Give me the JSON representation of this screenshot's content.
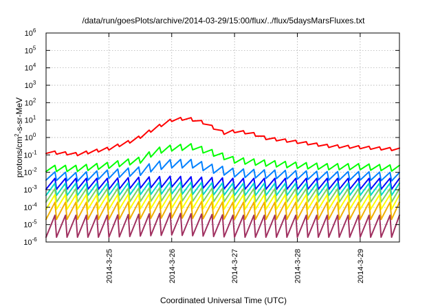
{
  "chart_data": {
    "type": "line",
    "title": "/data/run/goesPlots/archive/2014-03-29/15:00/flux/../flux/5daysMarsFluxes.txt",
    "xlabel": "Coordinated Universal Time (UTC)",
    "ylabel": "protons/cm2-s-sr-MeV",
    "ylabel_main": "protons/cm",
    "ylabel_sup": "2",
    "ylabel_rest": "-s-sr-MeV",
    "yscale": "log",
    "ylim": [
      1e-06,
      1000000.0
    ],
    "xlim": [
      "2014-03-24T00:00",
      "2014-03-29T15:00"
    ],
    "grid": true,
    "y_ticks": [
      {
        "base": "10",
        "exp": "6",
        "value": 1000000.0
      },
      {
        "base": "10",
        "exp": "5",
        "value": 100000.0
      },
      {
        "base": "10",
        "exp": "4",
        "value": 10000.0
      },
      {
        "base": "10",
        "exp": "3",
        "value": 1000.0
      },
      {
        "base": "10",
        "exp": "2",
        "value": 100.0
      },
      {
        "base": "10",
        "exp": "1",
        "value": 10.0
      },
      {
        "base": "10",
        "exp": "0",
        "value": 1.0
      },
      {
        "base": "10",
        "exp": "-1",
        "value": 0.1
      },
      {
        "base": "10",
        "exp": "-2",
        "value": 0.01
      },
      {
        "base": "10",
        "exp": "-3",
        "value": 0.001
      },
      {
        "base": "10",
        "exp": "-4",
        "value": 0.0001
      },
      {
        "base": "10",
        "exp": "-5",
        "value": 1e-05
      },
      {
        "base": "10",
        "exp": "-6",
        "value": 1e-06
      }
    ],
    "x_ticks": [
      {
        "label": "2014-3-25",
        "value": "2014-03-25T00:00"
      },
      {
        "label": "2014-3-26",
        "value": "2014-03-26T00:00"
      },
      {
        "label": "2014-3-27",
        "value": "2014-03-27T00:00"
      },
      {
        "label": "2014-3-28",
        "value": "2014-03-28T00:00"
      },
      {
        "label": "2014-3-29",
        "value": "2014-03-29T00:00"
      }
    ],
    "series": [
      {
        "color": "#ff0000",
        "x": [
          "2014-03-24T00:00",
          "2014-03-24T12:00",
          "2014-03-25T00:00",
          "2014-03-25T10:00",
          "2014-03-25T18:00",
          "2014-03-26T00:00",
          "2014-03-26T06:00",
          "2014-03-26T12:00",
          "2014-03-26T20:00",
          "2014-03-27T00:00",
          "2014-03-27T06:00",
          "2014-03-27T12:00",
          "2014-03-28T00:00",
          "2014-03-28T12:00",
          "2014-03-29T00:00",
          "2014-03-29T15:00"
        ],
        "values": [
          0.16,
          0.12,
          0.25,
          0.8,
          4,
          11,
          14,
          8,
          2,
          2.5,
          2,
          1,
          0.6,
          0.35,
          0.3,
          0.22
        ]
      },
      {
        "color": "#00ff00",
        "x": [
          "2014-03-24T00:00",
          "2014-03-24T12:00",
          "2014-03-25T00:00",
          "2014-03-25T12:00",
          "2014-03-25T18:00",
          "2014-03-26T00:00",
          "2014-03-26T08:00",
          "2014-03-26T16:00",
          "2014-03-27T00:00",
          "2014-03-27T12:00",
          "2014-03-28T00:00",
          "2014-03-28T12:00",
          "2014-03-29T00:00",
          "2014-03-29T15:00"
        ],
        "values": [
          0.02,
          0.02,
          0.03,
          0.06,
          0.2,
          0.3,
          0.35,
          0.15,
          0.06,
          0.04,
          0.03,
          0.025,
          0.025,
          0.02
        ]
      },
      {
        "color": "#0080ff",
        "x": [
          "2014-03-24T00:00",
          "2014-03-24T12:00",
          "2014-03-25T00:00",
          "2014-03-25T12:00",
          "2014-03-25T18:00",
          "2014-03-26T00:00",
          "2014-03-26T08:00",
          "2014-03-26T16:00",
          "2014-03-27T00:00",
          "2014-03-27T12:00",
          "2014-03-28T00:00",
          "2014-03-28T12:00",
          "2014-03-29T00:00",
          "2014-03-29T15:00"
        ],
        "values": [
          0.008,
          0.007,
          0.01,
          0.015,
          0.03,
          0.04,
          0.04,
          0.02,
          0.012,
          0.01,
          0.009,
          0.008,
          0.008,
          0.007
        ]
      },
      {
        "color": "#0000ff",
        "x": [
          "2014-03-24T00:00",
          "2014-03-25T00:00",
          "2014-03-26T00:00",
          "2014-03-27T00:00",
          "2014-03-28T00:00",
          "2014-03-29T00:00",
          "2014-03-29T15:00"
        ],
        "values": [
          0.003,
          0.003,
          0.004,
          0.003,
          0.003,
          0.003,
          0.003
        ]
      },
      {
        "color": "#00d8c8",
        "x": [
          "2014-03-24T00:00",
          "2014-03-25T00:00",
          "2014-03-26T00:00",
          "2014-03-27T00:00",
          "2014-03-28T00:00",
          "2014-03-29T00:00",
          "2014-03-29T15:00"
        ],
        "values": [
          0.0015,
          0.0015,
          0.0018,
          0.0015,
          0.0015,
          0.0015,
          0.0015
        ]
      },
      {
        "color": "#80d060",
        "x": [
          "2014-03-24T00:00",
          "2014-03-25T00:00",
          "2014-03-26T00:00",
          "2014-03-27T00:00",
          "2014-03-28T00:00",
          "2014-03-29T00:00",
          "2014-03-29T15:00"
        ],
        "values": [
          0.0007,
          0.0007,
          0.0008,
          0.0007,
          0.0007,
          0.0007,
          0.0007
        ]
      },
      {
        "color": "#ffff00",
        "x": [
          "2014-03-24T00:00",
          "2014-03-25T00:00",
          "2014-03-26T00:00",
          "2014-03-27T00:00",
          "2014-03-28T00:00",
          "2014-03-29T00:00",
          "2014-03-29T15:00"
        ],
        "values": [
          0.0003,
          0.0003,
          0.00035,
          0.0003,
          0.0003,
          0.0003,
          0.0003
        ]
      },
      {
        "color": "#f0b000",
        "x": [
          "2014-03-24T00:00",
          "2014-03-25T00:00",
          "2014-03-26T00:00",
          "2014-03-27T00:00",
          "2014-03-28T00:00",
          "2014-03-29T00:00",
          "2014-03-29T15:00"
        ],
        "values": [
          0.0001,
          0.0001,
          0.00012,
          0.0001,
          0.0001,
          0.0001,
          0.0001
        ]
      },
      {
        "color": "#a03060",
        "x": [
          "2014-03-24T00:00",
          "2014-03-25T00:00",
          "2014-03-26T00:00",
          "2014-03-27T00:00",
          "2014-03-28T00:00",
          "2014-03-29T00:00",
          "2014-03-29T15:00"
        ],
        "values": [
          1.5e-05,
          1.5e-05,
          2e-05,
          1.5e-05,
          1.5e-05,
          1.5e-05,
          1.5e-05
        ]
      }
    ]
  }
}
